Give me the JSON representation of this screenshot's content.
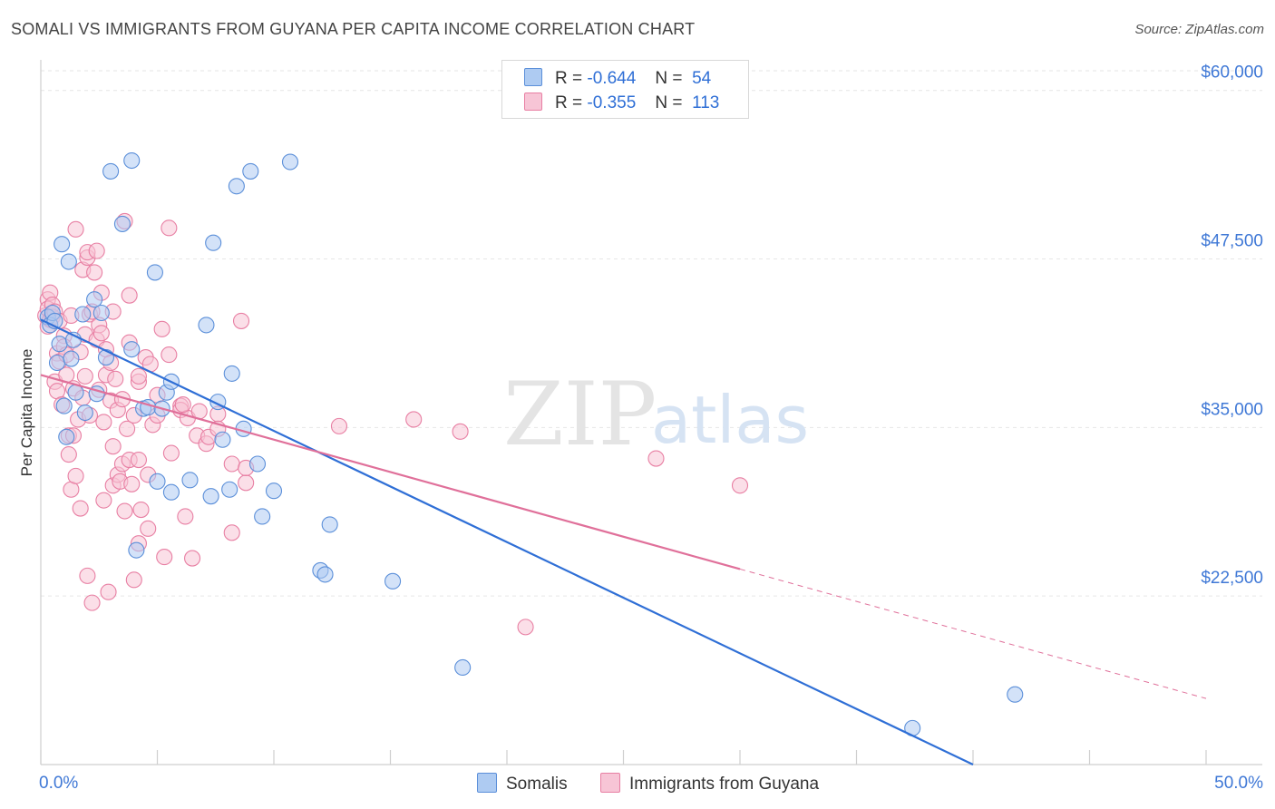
{
  "title": "SOMALI VS IMMIGRANTS FROM GUYANA PER CAPITA INCOME CORRELATION CHART",
  "source": "Source: ZipAtlas.com",
  "watermark": {
    "zip": "ZIP",
    "atlas": "atlas"
  },
  "legend": {
    "rows": [
      {
        "r_label": "R =",
        "r_value": "-0.644",
        "n_label": "N =",
        "n_value": "54",
        "color": "#aecbf2",
        "stroke": "#5b8fd9"
      },
      {
        "r_label": "R =",
        "r_value": "-0.355",
        "n_label": "N =",
        "n_value": "113",
        "color": "#f7c5d6",
        "stroke": "#e87fa3"
      }
    ]
  },
  "bottom_legend": [
    {
      "label": "Somalis",
      "color": "#aecbf2",
      "stroke": "#5b8fd9"
    },
    {
      "label": "Immigrants from Guyana",
      "color": "#f7c5d6",
      "stroke": "#e87fa3"
    }
  ],
  "chart_data": {
    "type": "scatter",
    "title": "SOMALI VS IMMIGRANTS FROM GUYANA PER CAPITA INCOME CORRELATION CHART",
    "xlabel": "",
    "ylabel": "Per Capita Income",
    "xlim": [
      0,
      50
    ],
    "ylim": [
      10000,
      62000
    ],
    "x_tick_labels": [
      {
        "value": 0,
        "label": "0.0%"
      },
      {
        "value": 50,
        "label": "50.0%"
      }
    ],
    "y_ticks": [
      {
        "value": 22500,
        "label": "$22,500"
      },
      {
        "value": 35000,
        "label": "$35,000"
      },
      {
        "value": 47500,
        "label": "$47,500"
      },
      {
        "value": 60000,
        "label": "$60,000"
      }
    ],
    "series": [
      {
        "name": "Somalis",
        "color": "#5b8fd9",
        "fill": "#aecbf2",
        "trend": {
          "x0": 0,
          "y0": 43000,
          "x1": 40,
          "y1": 10000,
          "dashed_to": null
        },
        "points": [
          [
            0.3,
            43200
          ],
          [
            0.4,
            42600
          ],
          [
            0.5,
            43500
          ],
          [
            0.6,
            42900
          ],
          [
            0.7,
            39800
          ],
          [
            0.8,
            41200
          ],
          [
            0.9,
            48600
          ],
          [
            1.0,
            36600
          ],
          [
            1.1,
            34300
          ],
          [
            1.2,
            47300
          ],
          [
            1.3,
            40100
          ],
          [
            1.4,
            41500
          ],
          [
            1.5,
            37600
          ],
          [
            1.8,
            43400
          ],
          [
            1.9,
            36100
          ],
          [
            2.3,
            44500
          ],
          [
            2.4,
            37500
          ],
          [
            2.6,
            43500
          ],
          [
            2.8,
            40200
          ],
          [
            3.0,
            54000
          ],
          [
            3.5,
            50100
          ],
          [
            3.9,
            54800
          ],
          [
            3.9,
            40800
          ],
          [
            4.1,
            25900
          ],
          [
            4.4,
            36400
          ],
          [
            4.6,
            36500
          ],
          [
            4.9,
            46500
          ],
          [
            5.0,
            31000
          ],
          [
            5.2,
            36400
          ],
          [
            5.4,
            37600
          ],
          [
            5.6,
            30200
          ],
          [
            5.6,
            38400
          ],
          [
            6.4,
            31100
          ],
          [
            7.1,
            42600
          ],
          [
            7.3,
            29900
          ],
          [
            7.4,
            48700
          ],
          [
            7.6,
            36900
          ],
          [
            7.8,
            34100
          ],
          [
            8.1,
            30400
          ],
          [
            8.2,
            39000
          ],
          [
            8.4,
            52900
          ],
          [
            8.7,
            34900
          ],
          [
            9.0,
            54000
          ],
          [
            9.3,
            32300
          ],
          [
            9.5,
            28400
          ],
          [
            10.0,
            30300
          ],
          [
            10.7,
            54700
          ],
          [
            12.0,
            24400
          ],
          [
            12.2,
            24100
          ],
          [
            12.4,
            27800
          ],
          [
            15.1,
            23600
          ],
          [
            18.1,
            17200
          ],
          [
            37.4,
            12700
          ],
          [
            41.8,
            15200
          ]
        ]
      },
      {
        "name": "Immigrants from Guyana",
        "color": "#e87fa3",
        "fill": "#f7c5d6",
        "trend": {
          "x0": 0,
          "y0": 38900,
          "x1": 30,
          "y1": 24500,
          "dashed_x1": 50,
          "dashed_y1": 14900
        },
        "points": [
          [
            0.2,
            43300
          ],
          [
            0.3,
            44500
          ],
          [
            0.3,
            43800
          ],
          [
            0.3,
            42500
          ],
          [
            0.4,
            43000
          ],
          [
            0.4,
            45000
          ],
          [
            0.5,
            44100
          ],
          [
            0.5,
            43200
          ],
          [
            0.6,
            38400
          ],
          [
            0.6,
            43600
          ],
          [
            0.7,
            37700
          ],
          [
            0.7,
            40500
          ],
          [
            0.8,
            42900
          ],
          [
            0.8,
            39900
          ],
          [
            0.9,
            36700
          ],
          [
            1.0,
            41800
          ],
          [
            1.0,
            41000
          ],
          [
            1.1,
            38900
          ],
          [
            1.1,
            40400
          ],
          [
            1.2,
            33000
          ],
          [
            1.2,
            34400
          ],
          [
            1.3,
            43300
          ],
          [
            1.3,
            30400
          ],
          [
            1.4,
            37900
          ],
          [
            1.4,
            34400
          ],
          [
            1.5,
            49700
          ],
          [
            1.5,
            31400
          ],
          [
            1.6,
            35600
          ],
          [
            1.7,
            40600
          ],
          [
            1.7,
            29000
          ],
          [
            1.8,
            46700
          ],
          [
            1.8,
            37200
          ],
          [
            1.9,
            38800
          ],
          [
            1.9,
            41900
          ],
          [
            2.0,
            47600
          ],
          [
            2.0,
            48000
          ],
          [
            2.0,
            24000
          ],
          [
            2.1,
            35900
          ],
          [
            2.1,
            43400
          ],
          [
            2.2,
            43600
          ],
          [
            2.2,
            22000
          ],
          [
            2.3,
            46500
          ],
          [
            2.4,
            48100
          ],
          [
            2.4,
            41500
          ],
          [
            2.5,
            42600
          ],
          [
            2.5,
            37800
          ],
          [
            2.6,
            45000
          ],
          [
            2.6,
            42000
          ],
          [
            2.7,
            29600
          ],
          [
            2.8,
            38900
          ],
          [
            2.8,
            40800
          ],
          [
            2.9,
            22800
          ],
          [
            3.0,
            39800
          ],
          [
            3.0,
            37000
          ],
          [
            3.1,
            33600
          ],
          [
            3.1,
            43600
          ],
          [
            3.1,
            30700
          ],
          [
            3.2,
            38600
          ],
          [
            3.3,
            36300
          ],
          [
            3.3,
            31500
          ],
          [
            3.4,
            31000
          ],
          [
            3.5,
            32300
          ],
          [
            3.5,
            37100
          ],
          [
            3.6,
            50300
          ],
          [
            3.6,
            28800
          ],
          [
            3.7,
            34900
          ],
          [
            3.8,
            44800
          ],
          [
            3.8,
            41300
          ],
          [
            3.8,
            32600
          ],
          [
            3.9,
            30800
          ],
          [
            4.0,
            35900
          ],
          [
            4.0,
            23700
          ],
          [
            4.2,
            32600
          ],
          [
            4.2,
            38400
          ],
          [
            4.2,
            26400
          ],
          [
            4.3,
            28900
          ],
          [
            4.5,
            40200
          ],
          [
            4.6,
            31500
          ],
          [
            4.6,
            27500
          ],
          [
            4.7,
            39700
          ],
          [
            4.8,
            35200
          ],
          [
            5.0,
            37400
          ],
          [
            5.0,
            35900
          ],
          [
            5.2,
            42300
          ],
          [
            5.3,
            25400
          ],
          [
            5.5,
            49800
          ],
          [
            5.5,
            40400
          ],
          [
            5.6,
            33100
          ],
          [
            6.0,
            36600
          ],
          [
            6.0,
            36300
          ],
          [
            6.2,
            28400
          ],
          [
            6.3,
            35700
          ],
          [
            6.5,
            25300
          ],
          [
            6.7,
            34400
          ],
          [
            6.8,
            36200
          ],
          [
            7.1,
            33800
          ],
          [
            7.2,
            34300
          ],
          [
            7.6,
            36000
          ],
          [
            7.6,
            34900
          ],
          [
            8.2,
            32300
          ],
          [
            8.2,
            27200
          ],
          [
            8.6,
            42900
          ],
          [
            8.8,
            30900
          ],
          [
            8.8,
            32000
          ],
          [
            12.8,
            35100
          ],
          [
            16.0,
            35600
          ],
          [
            18.0,
            34700
          ],
          [
            20.8,
            20200
          ],
          [
            26.4,
            32700
          ],
          [
            30.0,
            30700
          ],
          [
            4.2,
            38800
          ],
          [
            6.1,
            36700
          ],
          [
            2.7,
            35400
          ]
        ]
      }
    ]
  }
}
